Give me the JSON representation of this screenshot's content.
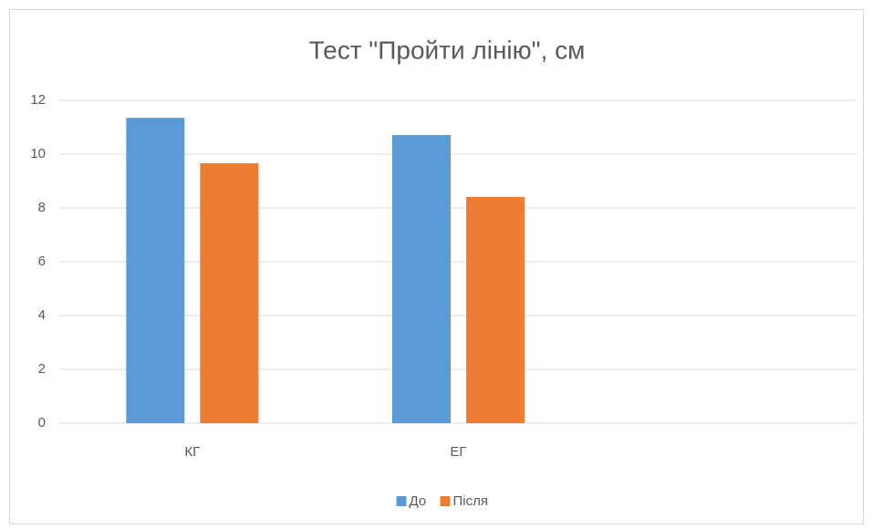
{
  "chart_data": {
    "type": "bar",
    "title": "Тест \"Пройти лінію\", см",
    "categories": [
      "КГ",
      "ЕГ",
      null
    ],
    "series": [
      {
        "name": "До",
        "color": "#5b9bd5",
        "values": [
          11.35,
          10.71,
          null
        ]
      },
      {
        "name": "Після",
        "color": "#ed7d31",
        "values": [
          9.66,
          8.41,
          null
        ]
      }
    ],
    "ylim": [
      0,
      12
    ],
    "yticks": [
      0,
      2,
      4,
      6,
      8,
      10,
      12
    ],
    "grid": true,
    "legend": "bottom"
  }
}
